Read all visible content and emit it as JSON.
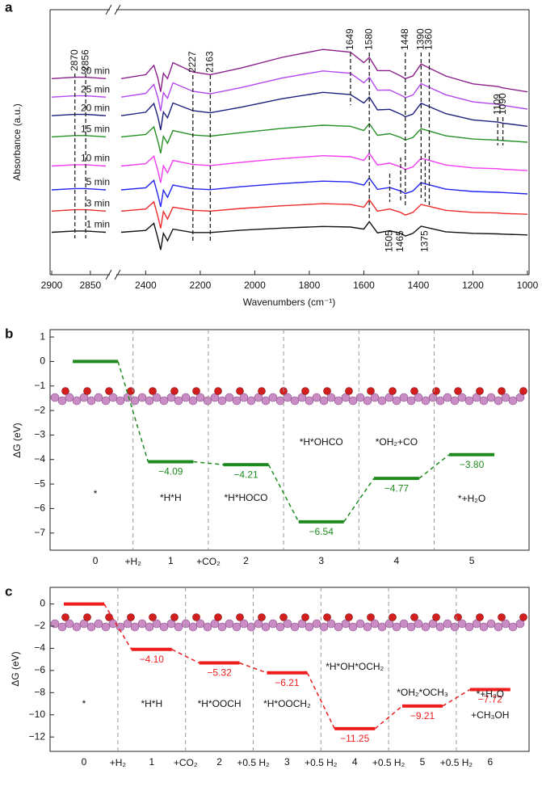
{
  "chart_data": [
    {
      "type": "line",
      "panel_label": "a",
      "ylabel": "Absorbance (a.u.)",
      "xlabel": "Wavenumbers (cm⁻¹)",
      "xlim": [
        2900,
        1000
      ],
      "xbreak": [
        2830,
        2490
      ],
      "ylim": [
        0,
        100
      ],
      "xticks": [
        2900,
        2850,
        2400,
        2200,
        2000,
        1800,
        1600,
        1400,
        1200,
        1000
      ],
      "x": [
        2900,
        2870,
        2856,
        2830,
        2490,
        2400,
        2370,
        2355,
        2345,
        2335,
        2320,
        2300,
        2227,
        2163,
        2050,
        1900,
        1750,
        1649,
        1600,
        1580,
        1550,
        1505,
        1465,
        1448,
        1420,
        1390,
        1360,
        1300,
        1200,
        1109,
        1090,
        1000
      ],
      "series": [
        {
          "name": "30 min",
          "color": "#8a1f8c",
          "values": [
            74,
            74.5,
            74.5,
            74,
            74,
            75.5,
            79,
            74,
            69,
            76,
            74,
            80,
            76.5,
            75.5,
            78,
            82,
            85,
            84,
            80,
            82,
            77,
            77,
            75,
            74,
            75,
            79.5,
            78,
            75,
            72,
            71,
            70.5,
            69
          ]
        },
        {
          "name": "25 min",
          "color": "#b347f0",
          "values": [
            67,
            67.5,
            67.5,
            67,
            67,
            68.4,
            71.8,
            66.7,
            61.8,
            68.7,
            66.6,
            72.4,
            69.2,
            68.3,
            70.6,
            74.2,
            76.9,
            76,
            72.4,
            74.5,
            69.6,
            69.7,
            67.8,
            66.8,
            67.8,
            72.1,
            70.7,
            67.9,
            65.2,
            64.3,
            63.9,
            62.5
          ]
        },
        {
          "name": "20 min",
          "color": "#1c1f7d",
          "values": [
            60,
            60.5,
            60.5,
            60,
            60,
            61.3,
            64.6,
            59.4,
            54.6,
            61.4,
            59.2,
            64.8,
            61.9,
            61.1,
            63.2,
            66.4,
            68.8,
            68,
            64.8,
            67,
            62.2,
            62.4,
            60.6,
            59.6,
            60.6,
            64.7,
            63.4,
            60.8,
            58.4,
            57.6,
            57.2,
            56
          ]
        },
        {
          "name": "15 min",
          "color": "#259125",
          "values": [
            52,
            52.5,
            52.5,
            52,
            52,
            52.9,
            55.8,
            50.2,
            45.8,
            52.2,
            49.6,
            54.4,
            52.7,
            52.3,
            53.6,
            55.2,
            56.4,
            56,
            54.4,
            57,
            52.6,
            53.2,
            51.8,
            50.8,
            51.8,
            55.1,
            54.2,
            52.4,
            51.2,
            50.8,
            50.6,
            50
          ]
        },
        {
          "name": "10 min",
          "color": "#f23cf2",
          "values": [
            41,
            41.5,
            41.5,
            41,
            41,
            41.9,
            44.7,
            39.1,
            34.7,
            41.1,
            38.4,
            43.1,
            41.6,
            41.2,
            42.4,
            43.8,
            44.9,
            44.5,
            43.1,
            45.8,
            41.4,
            42.1,
            40.7,
            39.7,
            40.7,
            43.9,
            43.1,
            41.4,
            40.3,
            40,
            39.8,
            39.3
          ]
        },
        {
          "name": "5 min",
          "color": "#2424f0",
          "values": [
            32,
            32.5,
            32.5,
            32,
            32,
            32.8,
            35.6,
            29.9,
            25.6,
            31.9,
            29.2,
            33.8,
            32.4,
            32.1,
            33.2,
            34.4,
            35.3,
            35,
            33.8,
            36.5,
            32.2,
            32.9,
            31.6,
            30.6,
            31.6,
            34.7,
            33.9,
            32.3,
            31.4,
            31.1,
            31,
            30.5
          ]
        },
        {
          "name": "3 min",
          "color": "#ee2a2a",
          "values": [
            24,
            24.5,
            24.5,
            24,
            24,
            24.8,
            27.5,
            21.8,
            17.5,
            23.8,
            21,
            25.5,
            24.3,
            24,
            25,
            26,
            26.8,
            26.5,
            25.5,
            28.3,
            24,
            24.8,
            23.5,
            22.5,
            23.5,
            26.5,
            25.8,
            24.3,
            23.5,
            23.3,
            23.1,
            22.8
          ]
        },
        {
          "name": "1 min",
          "color": "#111111",
          "values": [
            16,
            16.5,
            16.5,
            16,
            16,
            16.7,
            19.4,
            13.6,
            9.4,
            15.6,
            12.8,
            17.2,
            15.9,
            15.9,
            16.8,
            17.6,
            18.2,
            18,
            17.2,
            20,
            15.8,
            16.6,
            15.6,
            14.6,
            15.6,
            18.3,
            17.6,
            16.2,
            15.6,
            15.4,
            15.3,
            15
          ]
        }
      ],
      "peaks_top": [
        2870,
        2856,
        2227,
        2163,
        1649,
        1580,
        1448,
        1390,
        1360,
        1109,
        1090
      ],
      "peaks_bottom": [
        1505,
        1465,
        1375
      ]
    },
    {
      "type": "energy",
      "panel_label": "b",
      "ylabel": "ΔG (eV)",
      "color": "#1f8a1f",
      "ylim": [
        -7.7,
        1.3
      ],
      "yticks": [
        1,
        0,
        {
          "value": -1,
          "label": "−1"
        },
        {
          "value": -2,
          "label": "−2"
        },
        {
          "value": -3,
          "label": "−3"
        },
        {
          "value": -4,
          "label": "−4"
        },
        {
          "value": -5,
          "label": "−5"
        },
        {
          "value": -6,
          "label": "−6"
        },
        {
          "value": -7,
          "label": "−7"
        }
      ],
      "categories": [
        "0",
        "1",
        "2",
        "3",
        "4",
        "5"
      ],
      "steps": [
        "+H₂",
        "+CO₂",
        null,
        null,
        null
      ],
      "states": [
        "*",
        "*H*H",
        "*H*HOCO",
        "*H*OHCO",
        "*OH₂+CO",
        "*+H₂O"
      ],
      "values": [
        0,
        -4.09,
        -4.21,
        -6.54,
        -4.77,
        -3.8
      ],
      "value_labels": [
        null,
        "−4.09",
        "−4.21",
        "−6.54",
        "−4.77",
        "−3.80"
      ]
    },
    {
      "type": "energy",
      "panel_label": "c",
      "ylabel": "ΔG (eV)",
      "color": "#ee1c1c",
      "ylim": [
        -13.3,
        1.5
      ],
      "yticks": [
        0,
        {
          "value": -2,
          "label": "−2"
        },
        {
          "value": -4,
          "label": "−4"
        },
        {
          "value": -6,
          "label": "−6"
        },
        {
          "value": -8,
          "label": "−8"
        },
        {
          "value": -10,
          "label": "−10"
        },
        {
          "value": -12,
          "label": "−12"
        }
      ],
      "categories": [
        "0",
        "1",
        "2",
        "3",
        "4",
        "5",
        "6"
      ],
      "steps": [
        "+H₂",
        "+CO₂",
        "+0.5 H₂",
        "+0.5 H₂",
        "+0.5 H₂",
        "+0.5 H₂"
      ],
      "states": [
        "*",
        "*H*H",
        "*H*OOCH",
        "*H*OOCH₂",
        "*H*OH*OCH₂",
        "*OH₂*OCH₃",
        [
          "*+H₂O",
          "+CH₃OH"
        ]
      ],
      "values": [
        0,
        -4.1,
        -5.32,
        -6.21,
        -11.25,
        -9.21,
        -7.72
      ],
      "value_labels": [
        null,
        "−4.10",
        "−5.32",
        "−6.21",
        "−11.25",
        "−9.21",
        "−7.72"
      ]
    }
  ]
}
